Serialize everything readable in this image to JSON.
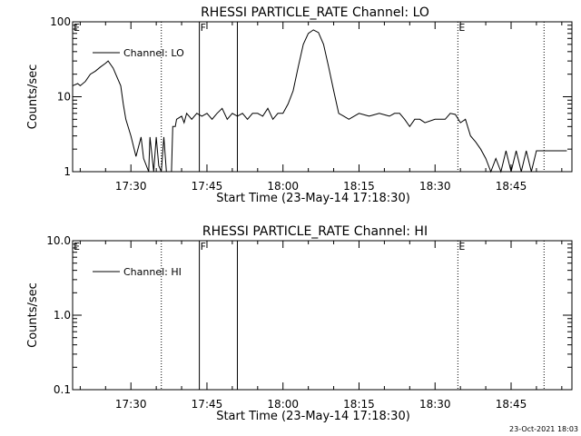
{
  "stamp": "23-Oct-2021 18:03",
  "chart_data": [
    {
      "type": "line",
      "title": "RHESSI PARTICLE_RATE Channel: LO",
      "xlabel": "Start Time (23-May-14 17:18:30)",
      "ylabel": "Counts/sec",
      "yscale": "log",
      "ylim": [
        1,
        100
      ],
      "yticks": [
        {
          "v": 1,
          "label": "1"
        },
        {
          "v": 10,
          "label": "10"
        },
        {
          "v": 100,
          "label": "100"
        }
      ],
      "xlim": [
        "17:18:30",
        "18:57:00"
      ],
      "xticks": [
        "17:30",
        "17:45",
        "18:00",
        "18:15",
        "18:30",
        "18:45"
      ],
      "legend": {
        "label": "Channel: LO",
        "position": "top-left"
      },
      "series": [
        {
          "name": "Channel: LO",
          "x": [
            "17:18:30",
            "17:19:30",
            "17:20:00",
            "17:21:00",
            "17:22:00",
            "17:23:00",
            "17:24:00",
            "17:25:00",
            "17:25:30",
            "17:26:30",
            "17:27:00",
            "17:28:00",
            "17:28:30",
            "17:29:00",
            "17:30:00",
            "17:31:00",
            "17:32:00",
            "17:32:30",
            "17:33:30",
            "17:33:45",
            "17:34:30",
            "17:35:00",
            "17:35:30",
            "17:36:00",
            "17:36:30",
            "17:37:00",
            "17:37:30",
            "17:38:00",
            "17:38:15",
            "17:38:45",
            "17:39:00",
            "17:40:00",
            "17:40:30",
            "17:41:00",
            "17:42:00",
            "17:43:00",
            "17:44:00",
            "17:45:00",
            "17:46:00",
            "17:47:00",
            "17:48:00",
            "17:49:00",
            "17:50:00",
            "17:51:00",
            "17:52:00",
            "17:53:00",
            "17:54:00",
            "17:55:00",
            "17:56:00",
            "17:57:00",
            "17:58:00",
            "17:59:00",
            "18:00:00",
            "18:01:00",
            "18:02:00",
            "18:03:00",
            "18:04:00",
            "18:05:00",
            "18:06:00",
            "18:07:00",
            "18:08:00",
            "18:09:00",
            "18:10:00",
            "18:11:00",
            "18:12:00",
            "18:13:00",
            "18:15:00",
            "18:17:00",
            "18:19:00",
            "18:21:00",
            "18:22:00",
            "18:23:00",
            "18:24:00",
            "18:25:00",
            "18:26:00",
            "18:27:00",
            "18:28:00",
            "18:30:00",
            "18:32:00",
            "18:33:00",
            "18:34:00",
            "18:35:00",
            "18:36:00",
            "18:37:00",
            "18:38:00",
            "18:39:00",
            "18:40:00",
            "18:41:00",
            "18:42:00",
            "18:43:00",
            "18:44:00",
            "18:45:00",
            "18:46:00",
            "18:47:00",
            "18:48:00",
            "18:49:00",
            "18:50:00",
            "18:51:00",
            "18:52:00",
            "18:56:00"
          ],
          "y": [
            14,
            15,
            14,
            16,
            20,
            22,
            25,
            28,
            30,
            24,
            20,
            14,
            8,
            5,
            3,
            1.6,
            2.9,
            1.5,
            1,
            2.9,
            1,
            2.9,
            1.2,
            1,
            2.9,
            1,
            1,
            1,
            4,
            4,
            5,
            5.5,
            4.5,
            6,
            5,
            6,
            5.5,
            6,
            5,
            6,
            7,
            5,
            6,
            5.5,
            6,
            5,
            6,
            6,
            5.5,
            7,
            5,
            6,
            6,
            8,
            12,
            25,
            50,
            70,
            78,
            72,
            50,
            25,
            12,
            6,
            5.5,
            5,
            6,
            5.5,
            6,
            5.5,
            6,
            6,
            5,
            4,
            5,
            5,
            4.5,
            5,
            5,
            6,
            5.8,
            4.5,
            5,
            3,
            2.5,
            2,
            1.5,
            1,
            1.5,
            1,
            1.9,
            1,
            1.9,
            1,
            1.9,
            1,
            1.9,
            1.9,
            1.9,
            1.9
          ]
        }
      ],
      "annotations": {
        "dotted_lines_at": [
          "17:36:00",
          "18:34:30",
          "18:51:30"
        ],
        "solid_lines_at": [
          "17:43:30",
          "17:51:00"
        ],
        "letters": [
          {
            "text": "E",
            "at": "17:18:30"
          },
          {
            "text": "F",
            "at": "17:43:30"
          },
          {
            "text": "E",
            "at": "18:34:30"
          }
        ]
      }
    },
    {
      "type": "line",
      "title": "RHESSI PARTICLE_RATE Channel: HI",
      "xlabel": "Start Time (23-May-14 17:18:30)",
      "ylabel": "Counts/sec",
      "yscale": "log",
      "ylim": [
        0.1,
        10
      ],
      "yticks": [
        {
          "v": 0.1,
          "label": "0.1"
        },
        {
          "v": 1,
          "label": "1.0"
        },
        {
          "v": 10,
          "label": "10.0"
        }
      ],
      "xlim": [
        "17:18:30",
        "18:57:00"
      ],
      "xticks": [
        "17:30",
        "17:45",
        "18:00",
        "18:15",
        "18:30",
        "18:45"
      ],
      "legend": {
        "label": "Channel: HI",
        "position": "top-left"
      },
      "series": [
        {
          "name": "Channel: HI",
          "x": [],
          "y": []
        }
      ],
      "annotations": {
        "dotted_lines_at": [
          "17:36:00",
          "18:34:30",
          "18:51:30"
        ],
        "solid_lines_at": [
          "17:43:30",
          "17:51:00"
        ],
        "letters": [
          {
            "text": "E",
            "at": "17:18:30"
          },
          {
            "text": "F",
            "at": "17:43:30"
          },
          {
            "text": "E",
            "at": "18:34:30"
          }
        ]
      }
    }
  ]
}
